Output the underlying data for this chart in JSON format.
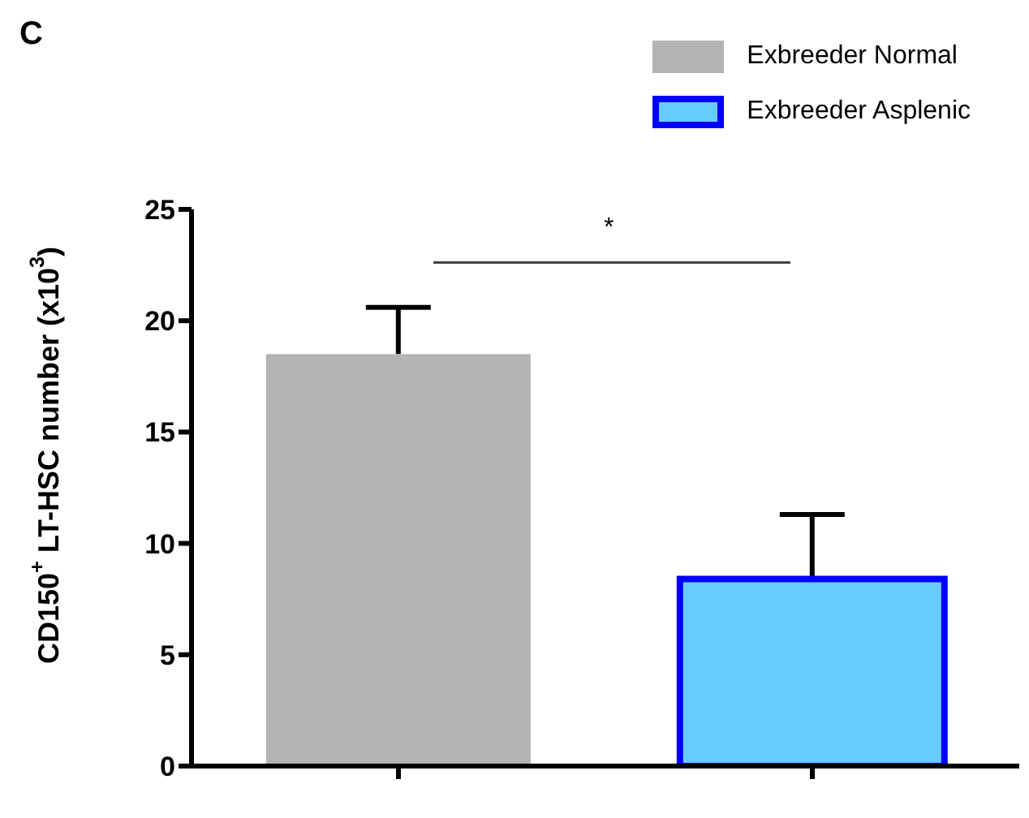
{
  "chart_data": {
    "type": "bar",
    "ylabel": "CD150$^{+}$ LT-HSC number (x10$^{3}$)",
    "categories": [
      null,
      null
    ],
    "series": [
      {
        "name": "Exbreeder Normal",
        "color": "#b3b3b3",
        "values": [
          18.5,
          null
        ],
        "errors": [
          2.1,
          null
        ]
      },
      {
        "name": "Exbreeder Asplenic",
        "color": "#66ccff",
        "values": [
          null,
          8.4
        ],
        "errors": [
          null,
          2.9
        ]
      }
    ],
    "ylim": [
      0,
      25
    ],
    "yticks": [
      0,
      5,
      10,
      15,
      20,
      25
    ],
    "grid": false,
    "legend": "top right",
    "annotations": [
      "C",
      "*"
    ]
  }
}
